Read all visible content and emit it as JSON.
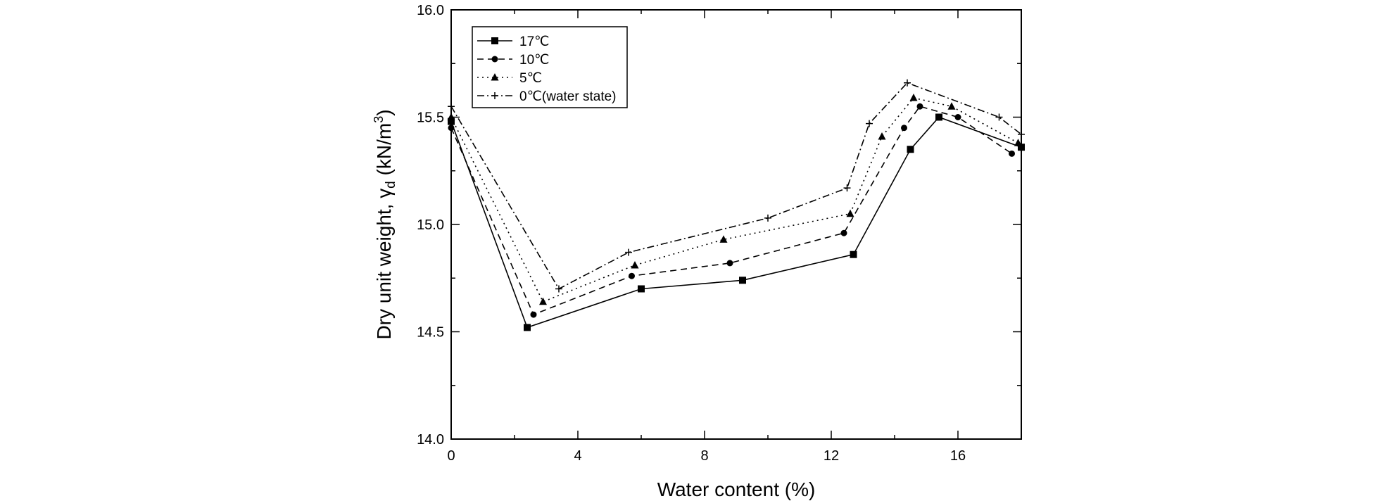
{
  "chart_data": {
    "type": "line",
    "xlabel": "Water content (%)",
    "ylabel_main": "Dry unit weight, γ",
    "ylabel_sub": "d",
    "ylabel_unit_open": " (kN/m",
    "ylabel_unit_sup": "3",
    "ylabel_unit_close": ")",
    "xlim": [
      0,
      18
    ],
    "ylim": [
      14.0,
      16.0
    ],
    "x_ticks": [
      0,
      4,
      8,
      12,
      16
    ],
    "x_tick_labels": [
      "0",
      "4",
      "8",
      "12",
      "16"
    ],
    "y_ticks": [
      14.0,
      14.5,
      15.0,
      15.5,
      16.0
    ],
    "y_tick_labels": [
      "14.0",
      "14.5",
      "15.0",
      "15.5",
      "16.0"
    ],
    "grid": false,
    "legend_position": "top-left",
    "series": [
      {
        "name": "17℃",
        "marker": "square",
        "dash": "solid",
        "x": [
          0.0,
          2.4,
          6.0,
          9.2,
          12.7,
          14.5,
          15.4,
          18.0
        ],
        "y": [
          15.48,
          14.52,
          14.7,
          14.74,
          14.86,
          15.35,
          15.5,
          15.36
        ]
      },
      {
        "name": "10℃",
        "marker": "circle",
        "dash": "dashed",
        "x": [
          0.0,
          2.6,
          5.7,
          8.8,
          12.4,
          14.3,
          14.8,
          16.0,
          17.7
        ],
        "y": [
          15.45,
          14.58,
          14.76,
          14.82,
          14.96,
          15.45,
          15.55,
          15.5,
          15.33
        ]
      },
      {
        "name": "5℃",
        "marker": "triangle",
        "dash": "dotted",
        "x": [
          0.0,
          2.9,
          5.8,
          8.6,
          12.6,
          13.6,
          14.6,
          15.8,
          17.9
        ],
        "y": [
          15.5,
          14.64,
          14.81,
          14.93,
          15.05,
          15.41,
          15.59,
          15.55,
          15.38
        ]
      },
      {
        "name": "0℃(water state)",
        "marker": "plus",
        "dash": "dashdot",
        "x": [
          0.0,
          3.4,
          5.6,
          10.0,
          12.5,
          13.2,
          14.4,
          17.3,
          18.0
        ],
        "y": [
          15.55,
          14.7,
          14.87,
          15.03,
          15.17,
          15.47,
          15.66,
          15.5,
          15.42
        ]
      }
    ]
  }
}
